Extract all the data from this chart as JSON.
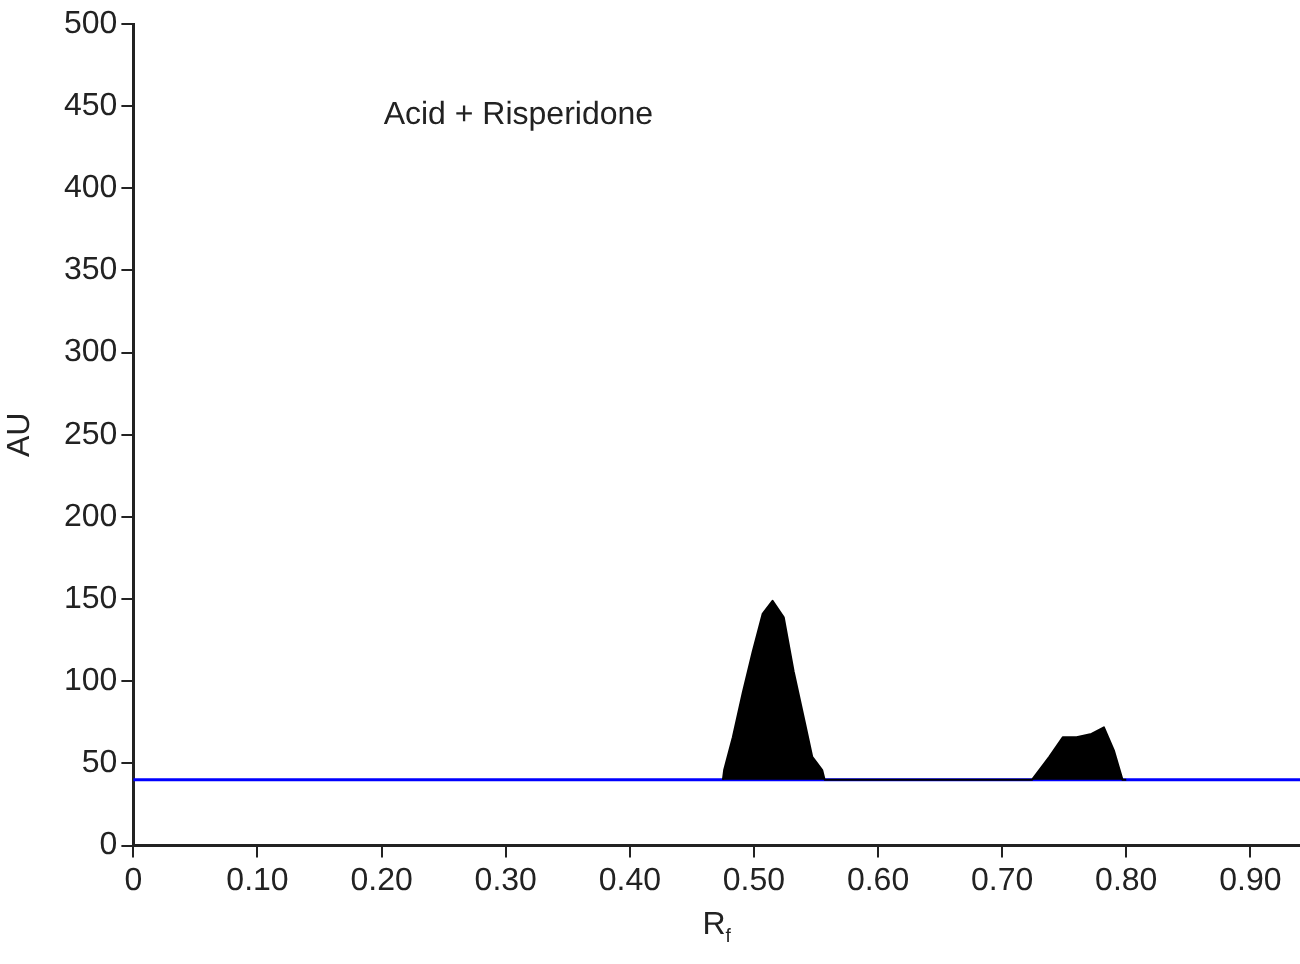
{
  "chart_data": {
    "type": "area",
    "xlabel": "R$_{f}$",
    "ylabel": "AU",
    "annotations": [
      "Acid + Risperidone"
    ],
    "series": [
      {
        "color": "#000000",
        "x": [
          0.475,
          0.476,
          0.483,
          0.491,
          0.499,
          0.507,
          0.515,
          0.524,
          0.532,
          0.541,
          0.547,
          0.555,
          0.557,
          0.724,
          0.738,
          0.749,
          0.76,
          0.772,
          0.782,
          0.79,
          0.797,
          0.8
        ],
        "values": [
          40,
          46,
          66,
          93,
          118,
          141,
          149,
          139,
          106,
          75,
          54,
          46,
          40,
          40,
          54,
          66,
          66,
          68,
          72,
          58,
          40,
          40
        ]
      }
    ],
    "xlim": [
      0,
      0.94
    ],
    "xticks": [
      0,
      {
        "value": 0.1,
        "label": "0.10"
      },
      {
        "value": 0.2,
        "label": "0.20"
      },
      {
        "value": 0.3,
        "label": "0.30"
      },
      {
        "value": 0.4,
        "label": "0.40"
      },
      {
        "value": 0.5,
        "label": "0.50"
      },
      {
        "value": 0.6,
        "label": "0.60"
      },
      {
        "value": 0.7,
        "label": "0.70"
      },
      {
        "value": 0.8,
        "label": "0.80"
      },
      {
        "value": 0.9,
        "label": "0.90"
      }
    ],
    "ylim": [
      0,
      500
    ],
    "yticks": [
      0,
      50,
      100,
      150,
      200,
      250,
      300,
      350,
      400,
      450,
      500
    ],
    "ref_lines": [
      {
        "axis": "y",
        "value": 40,
        "color": "#0000ff"
      }
    ]
  }
}
